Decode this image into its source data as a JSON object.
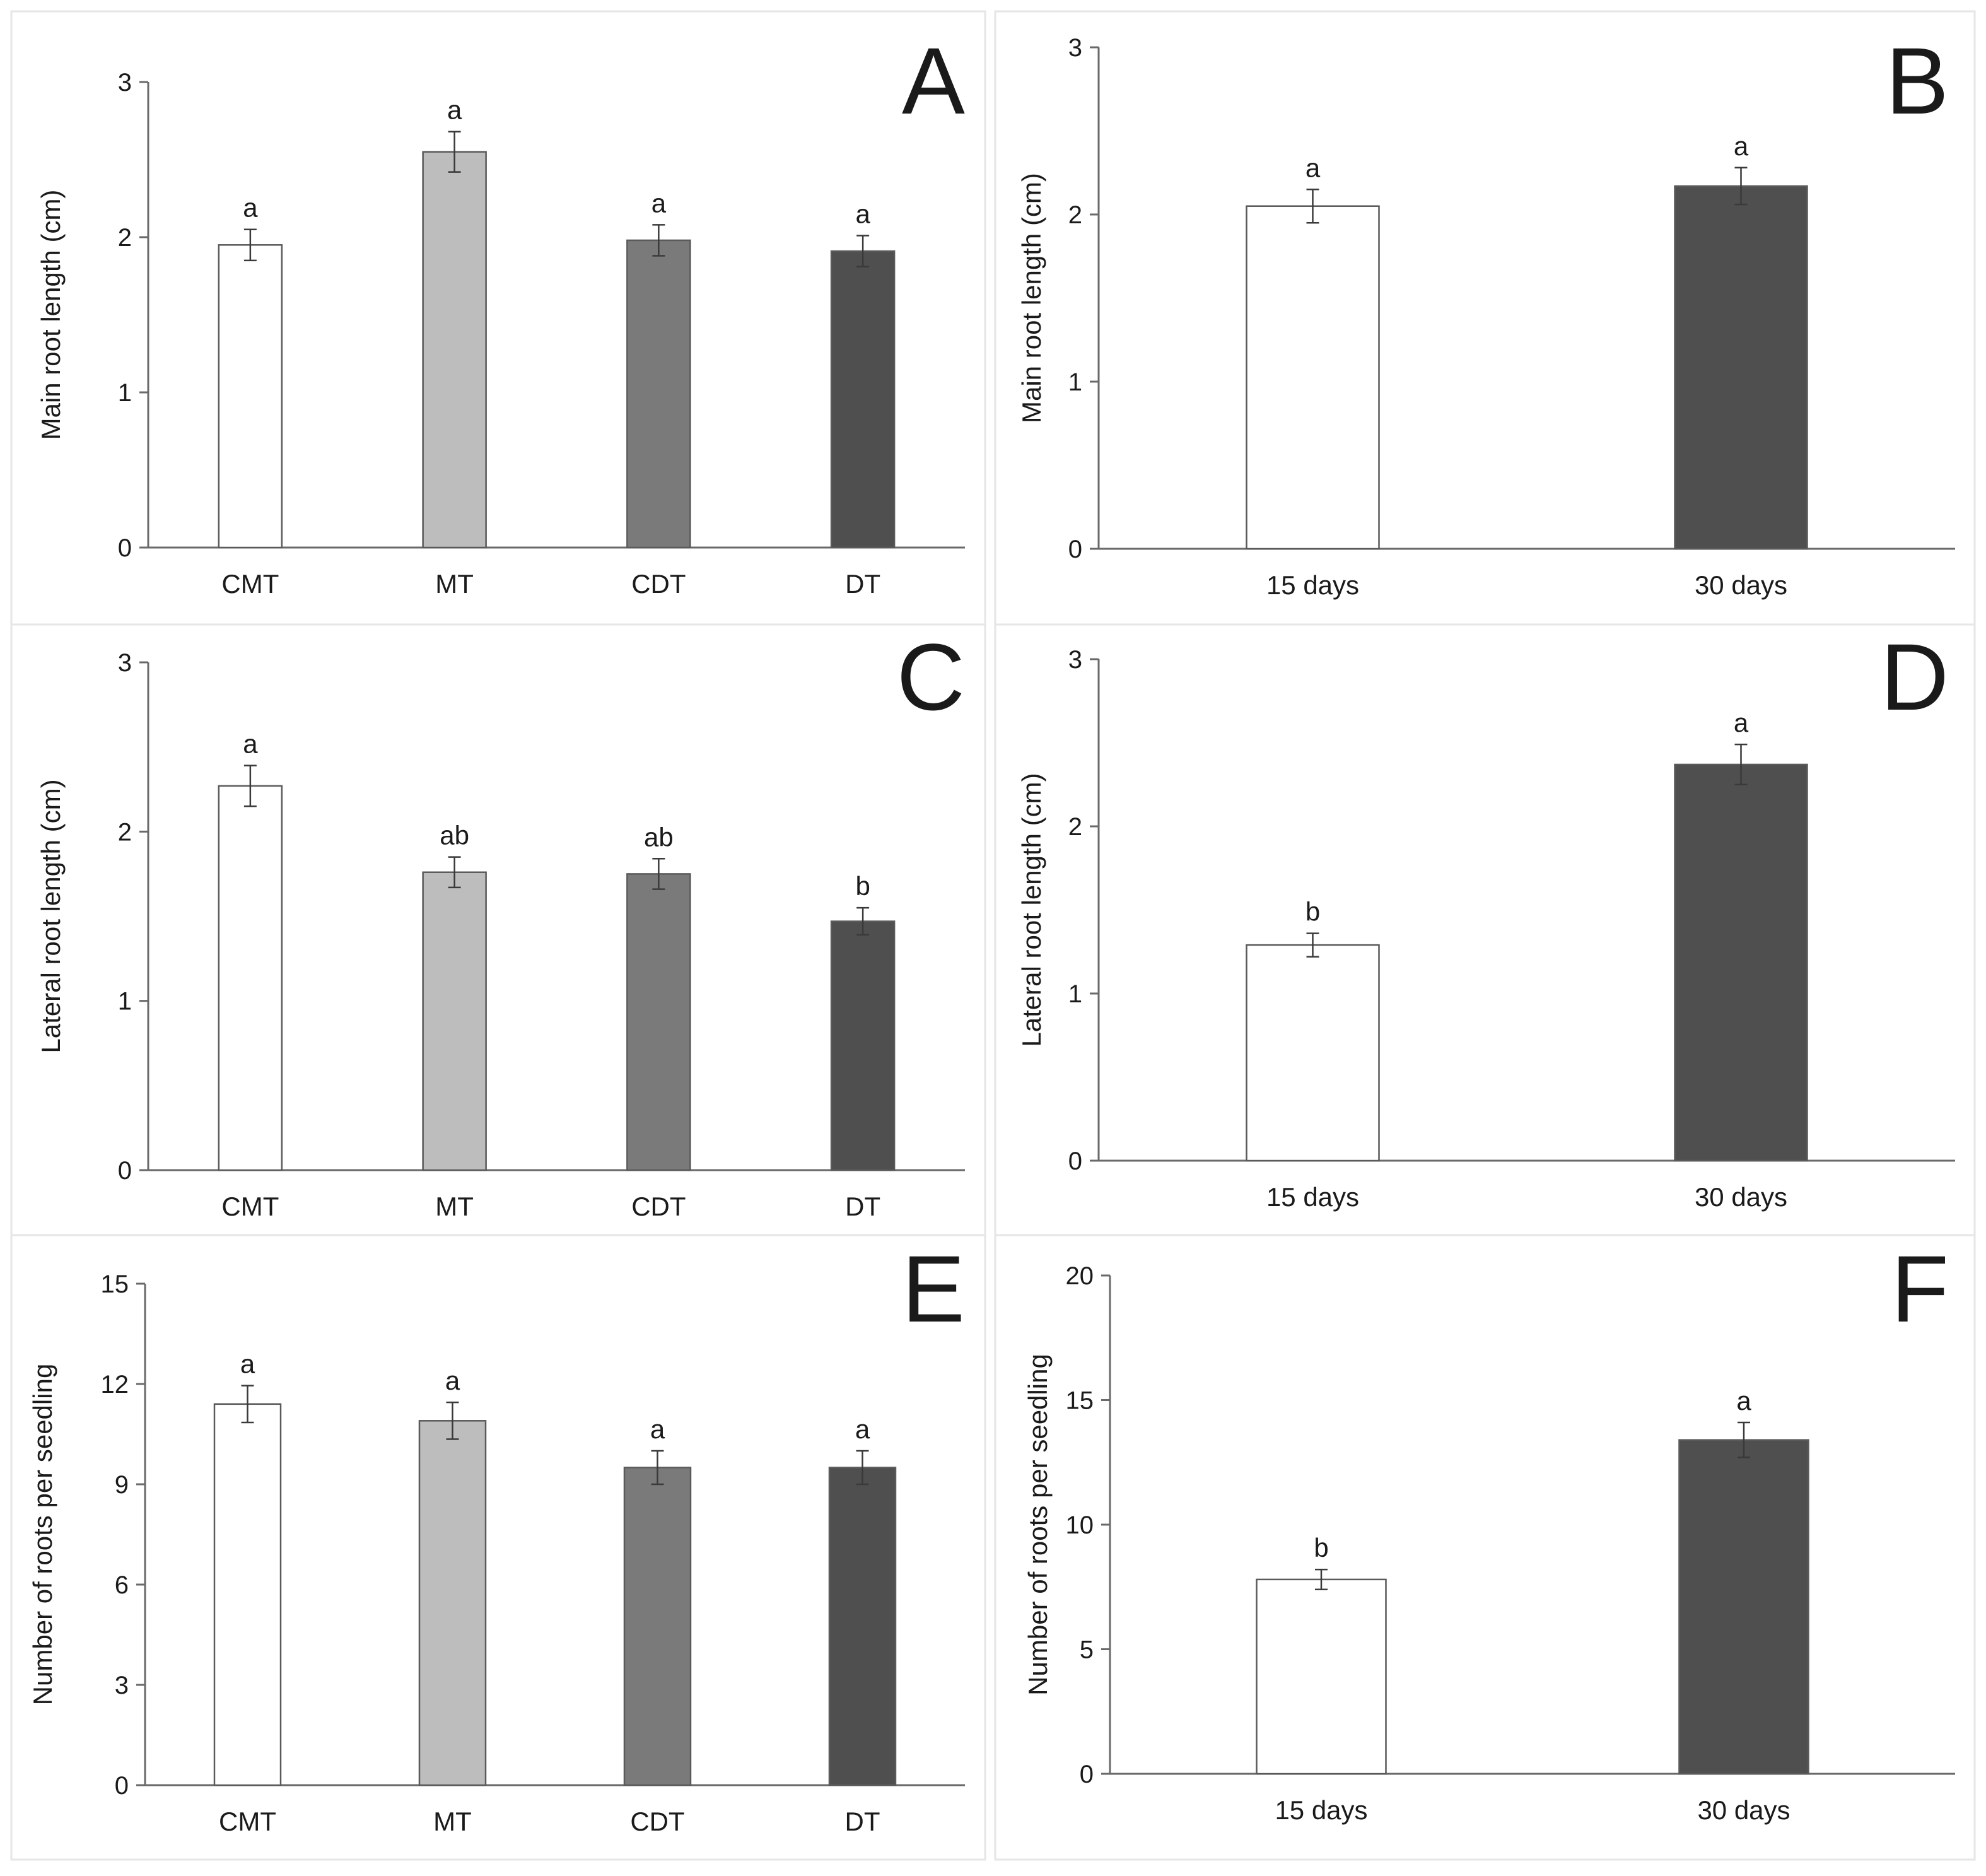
{
  "colors": {
    "bar_edge": "#5a5a5a",
    "axis": "#6a6a6a",
    "panel_border": "#e6e6e6",
    "text": "#1a1a1a"
  },
  "chart_data": [
    {
      "panel": "A",
      "type": "bar",
      "categories": [
        "CMT",
        "MT",
        "CDT",
        "DT"
      ],
      "values": [
        1.95,
        2.55,
        1.98,
        1.91
      ],
      "errors": [
        0.1,
        0.13,
        0.1,
        0.1
      ],
      "significance": [
        "a",
        "a",
        "a",
        "a"
      ],
      "fill_colors": [
        "#ffffff",
        "#bdbdbd",
        "#7a7a7a",
        "#4f4f4f"
      ],
      "ylabel": "Main root length  (cm)",
      "ylim": [
        0,
        3
      ],
      "yticks": [
        0,
        1,
        2,
        3
      ]
    },
    {
      "panel": "B",
      "type": "bar",
      "categories": [
        "15 days",
        "30 days"
      ],
      "values": [
        2.05,
        2.17
      ],
      "errors": [
        0.1,
        0.11
      ],
      "significance": [
        "a",
        "a"
      ],
      "fill_colors": [
        "#ffffff",
        "#4f4f4f"
      ],
      "ylabel": "Main root length  (cm)",
      "ylim": [
        0,
        3
      ],
      "yticks": [
        0,
        1,
        2,
        3
      ]
    },
    {
      "panel": "C",
      "type": "bar",
      "categories": [
        "CMT",
        "MT",
        "CDT",
        "DT"
      ],
      "values": [
        2.27,
        1.76,
        1.75,
        1.47
      ],
      "errors": [
        0.12,
        0.09,
        0.09,
        0.08
      ],
      "significance": [
        "a",
        "ab",
        "ab",
        "b"
      ],
      "fill_colors": [
        "#ffffff",
        "#bdbdbd",
        "#7a7a7a",
        "#4f4f4f"
      ],
      "ylabel": "Lateral root length  (cm)",
      "ylim": [
        0,
        3
      ],
      "yticks": [
        0,
        1,
        2,
        3
      ]
    },
    {
      "panel": "D",
      "type": "bar",
      "categories": [
        "15 days",
        "30 days"
      ],
      "values": [
        1.29,
        2.37
      ],
      "errors": [
        0.07,
        0.12
      ],
      "significance": [
        "b",
        "a"
      ],
      "fill_colors": [
        "#ffffff",
        "#4f4f4f"
      ],
      "ylabel": "Lateral root length  (cm)",
      "ylim": [
        0,
        3
      ],
      "yticks": [
        0,
        1,
        2,
        3
      ]
    },
    {
      "panel": "E",
      "type": "bar",
      "categories": [
        "CMT",
        "MT",
        "CDT",
        "DT"
      ],
      "values": [
        11.4,
        10.9,
        9.5,
        9.5
      ],
      "errors": [
        0.55,
        0.55,
        0.5,
        0.5
      ],
      "significance": [
        "a",
        "a",
        "a",
        "a"
      ],
      "fill_colors": [
        "#ffffff",
        "#bdbdbd",
        "#7a7a7a",
        "#4f4f4f"
      ],
      "ylabel": "Number of roots per seedling",
      "ylim": [
        0,
        15
      ],
      "yticks": [
        0,
        3,
        6,
        9,
        12,
        15
      ]
    },
    {
      "panel": "F",
      "type": "bar",
      "categories": [
        "15 days",
        "30 days"
      ],
      "values": [
        7.8,
        13.4
      ],
      "errors": [
        0.4,
        0.7
      ],
      "significance": [
        "b",
        "a"
      ],
      "fill_colors": [
        "#ffffff",
        "#4f4f4f"
      ],
      "ylabel": "Number of roots per seedling",
      "ylim": [
        0,
        20
      ],
      "yticks": [
        0,
        5,
        10,
        15,
        20
      ]
    }
  ]
}
